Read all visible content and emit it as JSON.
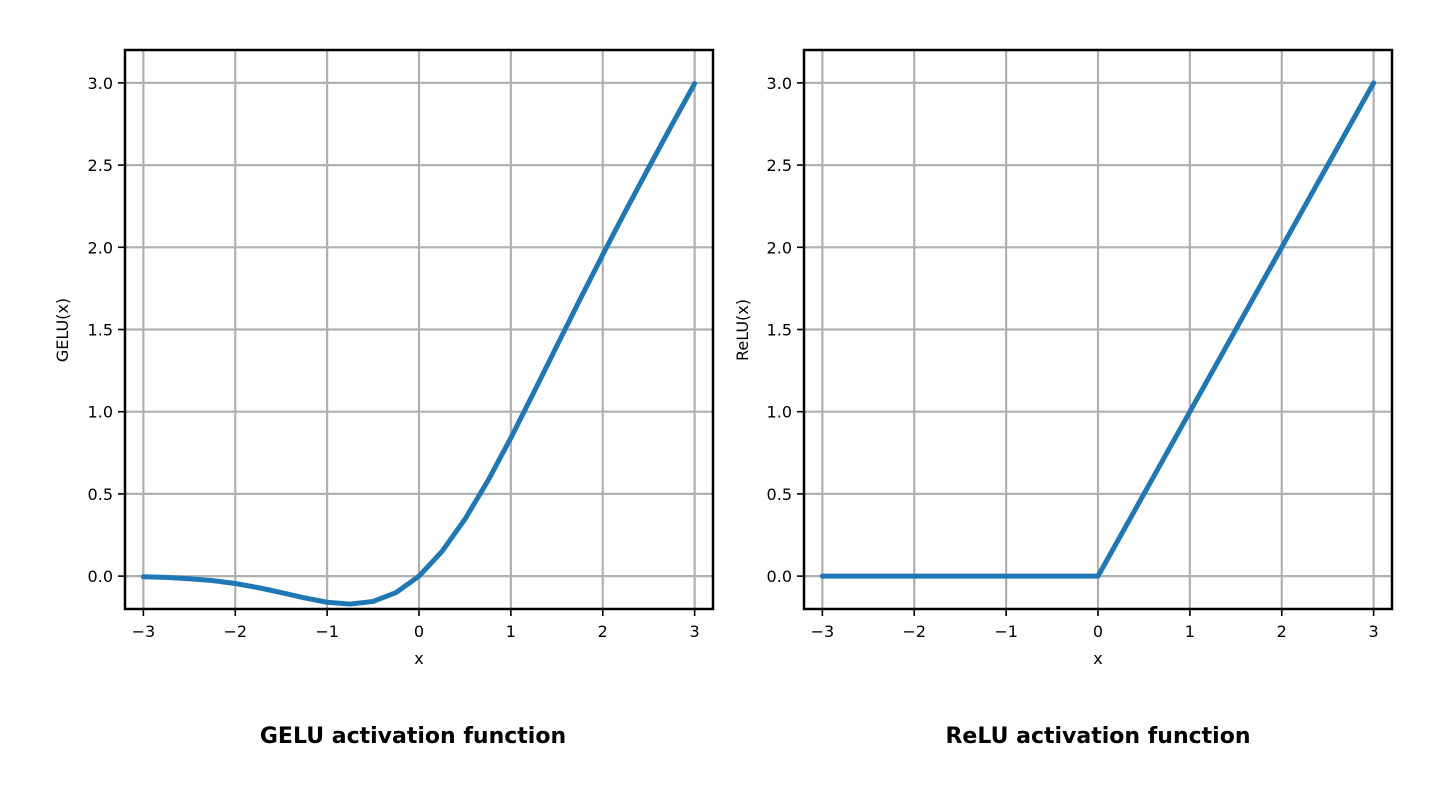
{
  "colors": {
    "line": "#1f77b4",
    "grid": "#b0b0b0",
    "axes": "#000000",
    "background": "#ffffff"
  },
  "chart_data": [
    {
      "type": "line",
      "caption": "GELU activation function",
      "xlabel": "x",
      "ylabel": "GELU(x)",
      "xlim": [
        -3.2,
        3.2
      ],
      "ylim": [
        -0.2,
        3.2
      ],
      "grid": true,
      "legend": "none",
      "x_ticks": [
        -3,
        -2,
        -1,
        0,
        1,
        2,
        3
      ],
      "x_tick_labels": [
        "−3",
        "−2",
        "−1",
        "0",
        "1",
        "2",
        "3"
      ],
      "y_ticks": [
        0,
        0.5,
        1,
        1.5,
        2,
        2.5,
        3
      ],
      "y_tick_labels": [
        "0.0",
        "0.5",
        "1.0",
        "1.5",
        "2.0",
        "2.5",
        "3.0"
      ],
      "series": [
        {
          "x": [
            -3,
            -2.75,
            -2.5,
            -2.25,
            -2,
            -1.75,
            -1.5,
            -1.25,
            -1,
            -0.75,
            -0.5,
            -0.25,
            0,
            0.25,
            0.5,
            0.75,
            1,
            1.25,
            1.5,
            1.75,
            2,
            2.25,
            2.5,
            2.75,
            3
          ],
          "y": [
            -0.004,
            -0.008,
            -0.016,
            -0.027,
            -0.045,
            -0.07,
            -0.1,
            -0.132,
            -0.159,
            -0.17,
            -0.154,
            -0.1,
            0,
            0.15,
            0.346,
            0.58,
            0.841,
            1.118,
            1.4,
            1.68,
            1.955,
            2.223,
            2.484,
            2.742,
            2.996
          ]
        }
      ]
    },
    {
      "type": "line",
      "caption": "ReLU activation function",
      "xlabel": "x",
      "ylabel": "ReLU(x)",
      "xlim": [
        -3.2,
        3.2
      ],
      "ylim": [
        -0.2,
        3.2
      ],
      "grid": true,
      "legend": "none",
      "x_ticks": [
        -3,
        -2,
        -1,
        0,
        1,
        2,
        3
      ],
      "x_tick_labels": [
        "−3",
        "−2",
        "−1",
        "0",
        "1",
        "2",
        "3"
      ],
      "y_ticks": [
        0,
        0.5,
        1,
        1.5,
        2,
        2.5,
        3
      ],
      "y_tick_labels": [
        "0.0",
        "0.5",
        "1.0",
        "1.5",
        "2.0",
        "2.5",
        "3.0"
      ],
      "series": [
        {
          "x": [
            -3,
            -2,
            -1,
            0,
            1,
            2,
            3
          ],
          "y": [
            0,
            0,
            0,
            0,
            1,
            2,
            3
          ]
        }
      ]
    }
  ]
}
